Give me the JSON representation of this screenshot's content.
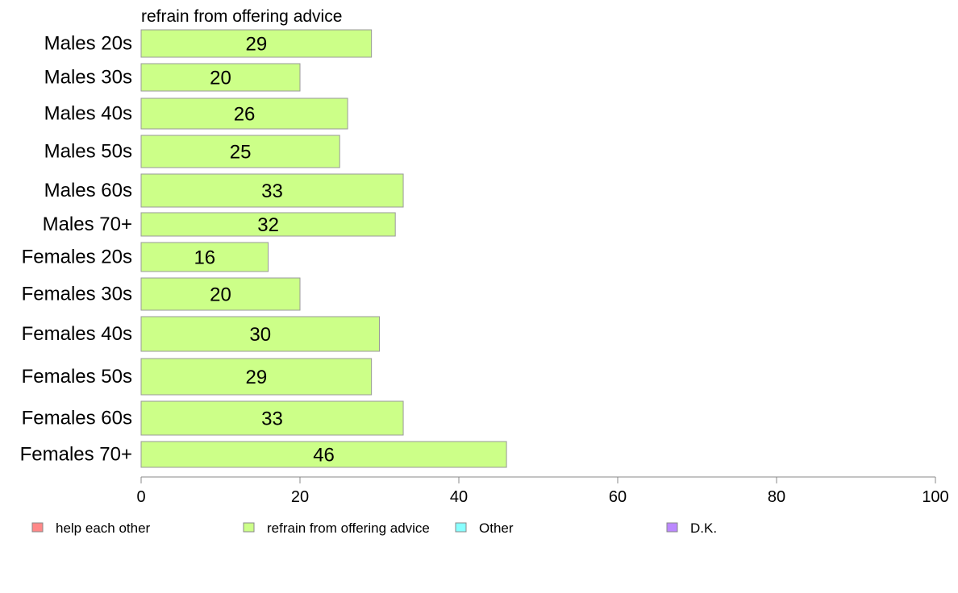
{
  "chart_data": {
    "type": "bar",
    "orientation": "horizontal",
    "panel_title": "refrain from offering advice",
    "categories": [
      "Males 20s",
      "Males 30s",
      "Males 40s",
      "Males 50s",
      "Males 60s",
      "Males 70+",
      "Females 20s",
      "Females 30s",
      "Females 40s",
      "Females 50s",
      "Females 60s",
      "Females 70+"
    ],
    "series": [
      {
        "name": "refrain from offering advice",
        "color": "#ccff88",
        "values": [
          29,
          20,
          26,
          25,
          33,
          32,
          16,
          20,
          30,
          29,
          33,
          46
        ]
      }
    ],
    "xlim": [
      0,
      100
    ],
    "xticks": [
      0,
      20,
      40,
      60,
      80,
      100
    ],
    "xlabel": "",
    "ylabel": "",
    "grid": false,
    "legend_position": "bottom",
    "legend": [
      {
        "label": "help each other",
        "color": "#ff8888"
      },
      {
        "label": "refrain from offering advice",
        "color": "#ccff88"
      },
      {
        "label": "Other",
        "color": "#88ffff"
      },
      {
        "label": "D.K.",
        "color": "#bb88ff"
      }
    ]
  }
}
